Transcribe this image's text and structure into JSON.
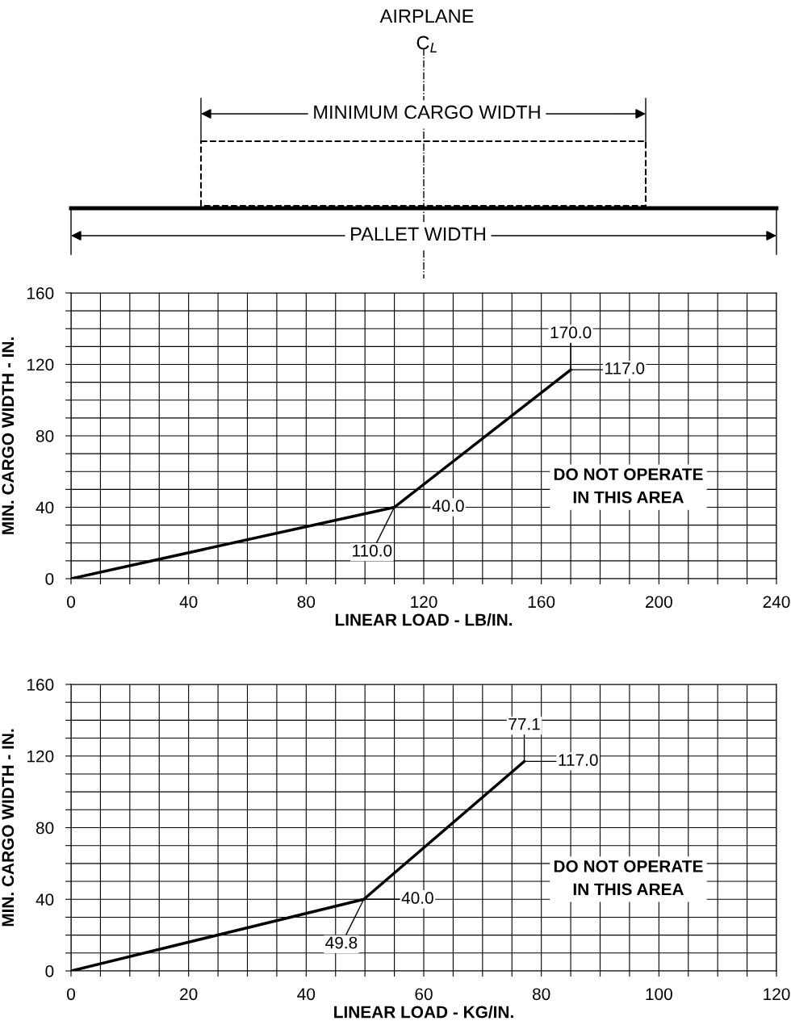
{
  "chart_data": [
    {
      "type": "line",
      "xlabel": "LINEAR LOAD - LB/IN.",
      "ylabel": "MIN. CARGO WIDTH - IN.",
      "x": [
        0,
        110,
        170
      ],
      "series": [
        {
          "color": "#000000",
          "values": [
            0,
            40,
            117
          ]
        }
      ],
      "xlim": [
        0,
        240
      ],
      "ylim": [
        0,
        160
      ],
      "xticks": [
        0,
        {
          "value": 10,
          "label": null
        },
        {
          "value": 20,
          "label": null
        },
        {
          "value": 30,
          "label": null
        },
        40,
        {
          "value": 50,
          "label": null
        },
        {
          "value": 60,
          "label": null
        },
        {
          "value": 70,
          "label": null
        },
        80,
        {
          "value": 90,
          "label": null
        },
        {
          "value": 100,
          "label": null
        },
        {
          "value": 110,
          "label": null
        },
        120,
        {
          "value": 130,
          "label": null
        },
        {
          "value": 140,
          "label": null
        },
        {
          "value": 150,
          "label": null
        },
        160,
        {
          "value": 170,
          "label": null
        },
        {
          "value": 180,
          "label": null
        },
        {
          "value": 190,
          "label": null
        },
        200,
        {
          "value": 210,
          "label": null
        },
        {
          "value": 220,
          "label": null
        },
        {
          "value": 230,
          "label": null
        },
        240
      ],
      "yticks": [
        0,
        {
          "value": 10,
          "label": null
        },
        {
          "value": 20,
          "label": null
        },
        {
          "value": 30,
          "label": null
        },
        40,
        {
          "value": 50,
          "label": null
        },
        {
          "value": 60,
          "label": null
        },
        {
          "value": 70,
          "label": null
        },
        80,
        {
          "value": 90,
          "label": null
        },
        {
          "value": 100,
          "label": null
        },
        {
          "value": 110,
          "label": null
        },
        120,
        {
          "value": 130,
          "label": null
        },
        {
          "value": 140,
          "label": null
        },
        {
          "value": 150,
          "label": null
        },
        160
      ],
      "grid": true,
      "marker": "none",
      "line_style": "solid",
      "annotations": [
        "AIRPLANE",
        "C$_{L}$",
        "MINIMUM CARGO WIDTH",
        "PALLET WIDTH",
        {
          "text": "170.0",
          "x": 170,
          "y": 117
        },
        {
          "text": "117.0",
          "x": 170,
          "y": 117
        },
        {
          "text": "40.0",
          "x": 110,
          "y": 40
        },
        {
          "text": "110.0",
          "x": 110,
          "y": 40
        },
        "DO NOT OPERATE\nIN THIS AREA"
      ]
    },
    {
      "type": "line",
      "xlabel": "LINEAR LOAD - KG/IN.",
      "ylabel": "MIN. CARGO WIDTH - IN.",
      "x": [
        0,
        49.8,
        77.1
      ],
      "series": [
        {
          "color": "#000000",
          "values": [
            0,
            40,
            117
          ]
        }
      ],
      "xlim": [
        0,
        120
      ],
      "ylim": [
        0,
        160
      ],
      "xticks": [
        0,
        {
          "value": 5,
          "label": null
        },
        {
          "value": 10,
          "label": null
        },
        {
          "value": 15,
          "label": null
        },
        20,
        {
          "value": 25,
          "label": null
        },
        {
          "value": 30,
          "label": null
        },
        {
          "value": 35,
          "label": null
        },
        40,
        {
          "value": 45,
          "label": null
        },
        {
          "value": 50,
          "label": null
        },
        {
          "value": 55,
          "label": null
        },
        60,
        {
          "value": 65,
          "label": null
        },
        {
          "value": 70,
          "label": null
        },
        {
          "value": 75,
          "label": null
        },
        80,
        {
          "value": 85,
          "label": null
        },
        {
          "value": 90,
          "label": null
        },
        {
          "value": 95,
          "label": null
        },
        100,
        {
          "value": 105,
          "label": null
        },
        {
          "value": 110,
          "label": null
        },
        {
          "value": 115,
          "label": null
        },
        120
      ],
      "yticks": [
        0,
        {
          "value": 10,
          "label": null
        },
        {
          "value": 20,
          "label": null
        },
        {
          "value": 30,
          "label": null
        },
        40,
        {
          "value": 50,
          "label": null
        },
        {
          "value": 60,
          "label": null
        },
        {
          "value": 70,
          "label": null
        },
        80,
        {
          "value": 90,
          "label": null
        },
        {
          "value": 100,
          "label": null
        },
        {
          "value": 110,
          "label": null
        },
        120,
        {
          "value": 130,
          "label": null
        },
        {
          "value": 140,
          "label": null
        },
        {
          "value": 150,
          "label": null
        },
        160
      ],
      "grid": true,
      "marker": "none",
      "line_style": "solid",
      "annotations": [
        {
          "text": "77.1",
          "x": 77.1,
          "y": 117
        },
        {
          "text": "117.0",
          "x": 77.1,
          "y": 117
        },
        {
          "text": "40.0",
          "x": 49.8,
          "y": 40
        },
        {
          "text": "49.8",
          "x": 49.8,
          "y": 40
        },
        "DO NOT OPERATE\nIN THIS AREA"
      ]
    }
  ]
}
